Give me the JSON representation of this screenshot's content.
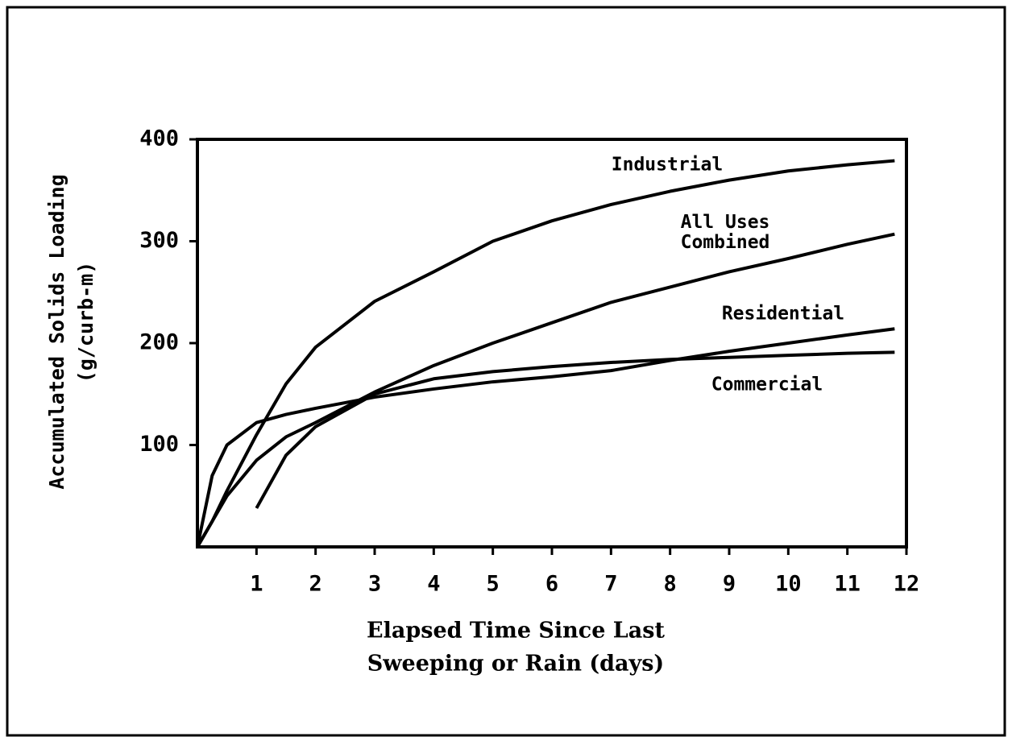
{
  "chart_data": {
    "type": "line",
    "xlabel": [
      "Elapsed Time Since Last",
      "Sweeping or Rain (days)"
    ],
    "ylabel": [
      "Accumulated Solids Loading",
      "(g/curb-m)"
    ],
    "x": [
      0,
      0.25,
      0.5,
      1,
      1.5,
      2,
      3,
      4,
      5,
      6,
      7,
      8,
      9,
      10,
      11,
      11.8
    ],
    "series": [
      {
        "name": "Industrial",
        "color": "#000000",
        "values": [
          0,
          25,
          55,
          110,
          160,
          196,
          241,
          270,
          300,
          320,
          336,
          349,
          360,
          369,
          375,
          379
        ]
      },
      {
        "name": "All Uses Combined",
        "color": "#000000",
        "values": [
          0,
          25,
          50,
          85,
          108,
          122,
          152,
          178,
          200,
          220,
          240,
          255,
          270,
          283,
          297,
          307
        ]
      },
      {
        "name": "Residential",
        "color": "#000000",
        "values": [
          0,
          70,
          100,
          122,
          130,
          136,
          147,
          155,
          162,
          167,
          173,
          183,
          192,
          200,
          208,
          214
        ]
      },
      {
        "name": "Commercial",
        "color": "#000000",
        "values": [
          null,
          null,
          null,
          38,
          90,
          118,
          150,
          165,
          172,
          177,
          181,
          184,
          186,
          188,
          190,
          191
        ]
      }
    ],
    "xlim": [
      0,
      12
    ],
    "xticks": [
      1,
      2,
      3,
      4,
      5,
      6,
      7,
      8,
      9,
      10,
      11,
      12
    ],
    "ylim": [
      0,
      400
    ],
    "yticks": [
      100,
      200,
      300,
      400
    ],
    "grid": false
  }
}
